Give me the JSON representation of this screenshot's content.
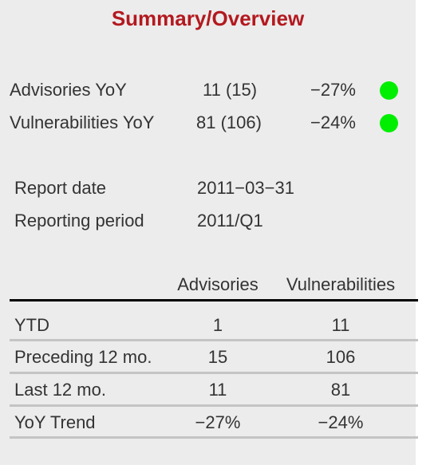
{
  "title": "Summary/Overview",
  "metrics": [
    {
      "label": "Advisories YoY",
      "value": "11 (15)",
      "change": "−27%",
      "status_color": "#00ee00"
    },
    {
      "label": "Vulnerabilities YoY",
      "value": "81 (106)",
      "change": "−24%",
      "status_color": "#00ee00"
    }
  ],
  "report": {
    "date_label": "Report date",
    "date_value": "2011−03−31",
    "period_label": "Reporting period",
    "period_value": "2011/Q1"
  },
  "table": {
    "columns": [
      "Advisories",
      "Vulnerabilities"
    ],
    "rows": [
      {
        "label": "YTD",
        "advisories": "1",
        "vulnerabilities": "11"
      },
      {
        "label": "Preceding 12 mo.",
        "advisories": "15",
        "vulnerabilities": "106"
      },
      {
        "label": "Last 12 mo.",
        "advisories": "11",
        "vulnerabilities": "81"
      },
      {
        "label": "YoY Trend",
        "advisories": "−27%",
        "vulnerabilities": "−24%"
      }
    ]
  }
}
